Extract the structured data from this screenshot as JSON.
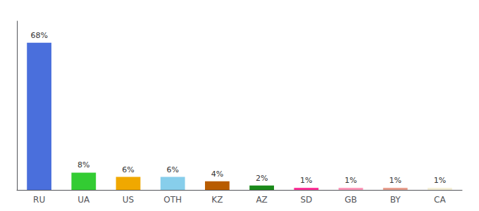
{
  "chart_data": {
    "type": "bar",
    "categories": [
      "RU",
      "UA",
      "US",
      "OTH",
      "KZ",
      "AZ",
      "SD",
      "GB",
      "BY",
      "CA"
    ],
    "values": [
      68,
      8,
      6,
      6,
      4,
      2,
      1,
      1,
      1,
      1
    ],
    "value_labels": [
      "68%",
      "8%",
      "6%",
      "6%",
      "4%",
      "2%",
      "1%",
      "1%",
      "1%",
      "1%"
    ],
    "colors": [
      "#4a6fdc",
      "#33cc33",
      "#f0a800",
      "#87ceeb",
      "#b85c00",
      "#1a8a1a",
      "#ff3399",
      "#ff99bb",
      "#e8a090",
      "#f5f0d8"
    ],
    "ylim": [
      0,
      78
    ],
    "grid": false,
    "data_labels": true,
    "tick_labels": "x"
  }
}
